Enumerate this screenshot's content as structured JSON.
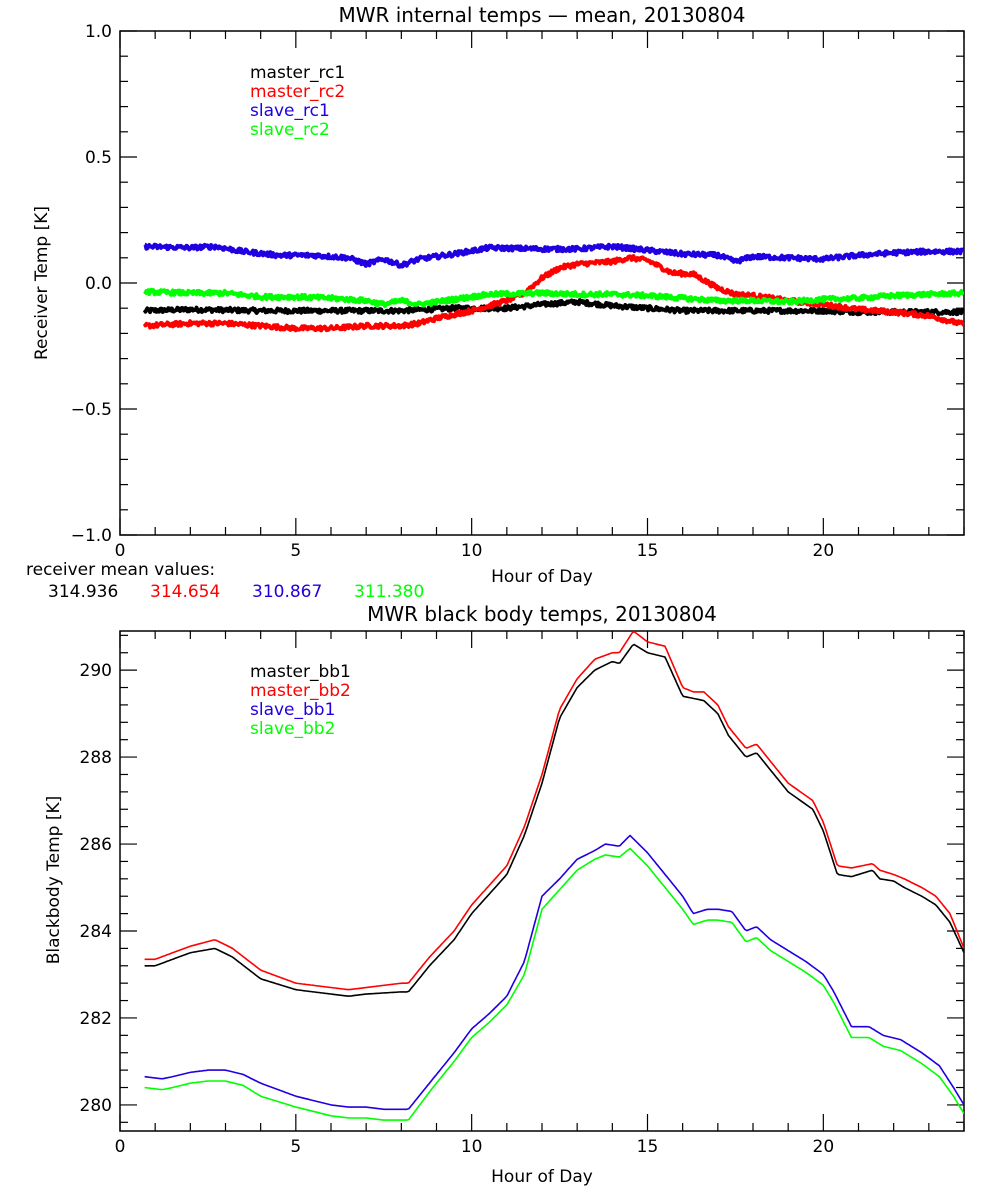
{
  "colors": {
    "black": "#000000",
    "red": "#ff0000",
    "blue": "#2000e0",
    "green": "#00ff00"
  },
  "chart_data": [
    {
      "type": "line",
      "title": "MWR internal temps — mean, 20130804",
      "xlabel": "Hour of Day",
      "ylabel": "Receiver Temp [K]",
      "xlim": [
        0,
        24
      ],
      "ylim": [
        -1.0,
        1.0
      ],
      "xticks": [
        0,
        5,
        10,
        15,
        20
      ],
      "xtick_labels": [
        "0",
        "5",
        "10",
        "15",
        "20"
      ],
      "yticks": [
        -1.0,
        -0.5,
        0.0,
        0.5,
        1.0
      ],
      "ytick_labels": [
        "−1.0",
        "−0.5",
        "0.0",
        "0.5",
        "1.0"
      ],
      "grid": false,
      "legend_position": "top-left",
      "noisy": true,
      "series": [
        {
          "name": "master_rc1",
          "color": "#000000",
          "x": [
            0.7,
            2,
            4,
            6,
            8,
            9.5,
            11,
            12,
            13,
            14,
            15,
            16,
            17,
            18,
            19,
            20,
            21,
            22,
            23,
            24
          ],
          "y": [
            -0.11,
            -0.105,
            -0.11,
            -0.11,
            -0.11,
            -0.1,
            -0.1,
            -0.085,
            -0.075,
            -0.09,
            -0.1,
            -0.11,
            -0.11,
            -0.11,
            -0.11,
            -0.11,
            -0.115,
            -0.115,
            -0.115,
            -0.115
          ]
        },
        {
          "name": "master_rc2",
          "color": "#ff0000",
          "x": [
            0.7,
            2,
            3,
            4,
            5,
            6,
            7,
            8,
            8.5,
            9,
            10,
            11,
            11.5,
            12,
            12.5,
            13,
            14,
            14.5,
            15,
            15.7,
            16.3,
            17,
            17.5,
            18,
            19,
            20,
            21,
            22,
            23,
            24
          ],
          "y": [
            -0.17,
            -0.16,
            -0.16,
            -0.17,
            -0.18,
            -0.18,
            -0.17,
            -0.17,
            -0.16,
            -0.14,
            -0.11,
            -0.07,
            -0.04,
            0.02,
            0.06,
            0.075,
            0.085,
            0.1,
            0.09,
            0.04,
            0.035,
            -0.02,
            -0.045,
            -0.05,
            -0.07,
            -0.085,
            -0.105,
            -0.115,
            -0.13,
            -0.165
          ]
        },
        {
          "name": "slave_rc1",
          "color": "#2000e0",
          "x": [
            0.7,
            2,
            2.7,
            3.5,
            4.5,
            5.5,
            6.5,
            7,
            7.5,
            8,
            8.5,
            9.5,
            10.5,
            12,
            13,
            14,
            15,
            16,
            17,
            17.5,
            18,
            19,
            20,
            21,
            22,
            23,
            24
          ],
          "y": [
            0.145,
            0.14,
            0.145,
            0.125,
            0.11,
            0.11,
            0.1,
            0.075,
            0.095,
            0.07,
            0.095,
            0.115,
            0.14,
            0.135,
            0.135,
            0.145,
            0.13,
            0.115,
            0.11,
            0.085,
            0.105,
            0.1,
            0.095,
            0.11,
            0.12,
            0.125,
            0.125
          ]
        },
        {
          "name": "slave_rc2",
          "color": "#00ff00",
          "x": [
            0.7,
            2,
            3,
            4,
            5,
            6,
            7,
            7.5,
            8,
            8.5,
            9.5,
            10.5,
            12,
            13,
            14,
            15,
            16,
            17,
            18,
            19,
            20,
            21,
            22,
            23,
            24
          ],
          "y": [
            -0.035,
            -0.04,
            -0.04,
            -0.055,
            -0.055,
            -0.06,
            -0.07,
            -0.085,
            -0.07,
            -0.085,
            -0.065,
            -0.045,
            -0.04,
            -0.045,
            -0.045,
            -0.05,
            -0.06,
            -0.07,
            -0.07,
            -0.075,
            -0.065,
            -0.06,
            -0.05,
            -0.045,
            -0.04
          ]
        }
      ],
      "annotation": {
        "label": "receiver mean values:",
        "values": [
          {
            "text": "314.936",
            "color": "#000000"
          },
          {
            "text": "314.654",
            "color": "#ff0000"
          },
          {
            "text": "310.867",
            "color": "#2000e0"
          },
          {
            "text": "311.380",
            "color": "#00ff00"
          }
        ]
      }
    },
    {
      "type": "line",
      "title": "MWR black body temps, 20130804",
      "xlabel": "Hour of Day",
      "ylabel": "Blackbody Temp [K]",
      "xlim": [
        0,
        24
      ],
      "ylim": [
        279.4,
        290.9
      ],
      "xticks": [
        0,
        5,
        10,
        15,
        20
      ],
      "xtick_labels": [
        "0",
        "5",
        "10",
        "15",
        "20"
      ],
      "yticks": [
        280,
        282,
        284,
        286,
        288,
        290
      ],
      "ytick_labels": [
        "280",
        "282",
        "284",
        "286",
        "288",
        "290"
      ],
      "grid": false,
      "legend_position": "top-left",
      "noisy": false,
      "series": [
        {
          "name": "master_bb1",
          "color": "#000000",
          "x": [
            0.7,
            1,
            1.5,
            2,
            2.7,
            3.2,
            4,
            5,
            6,
            6.5,
            7,
            8,
            8.2,
            8.8,
            9.5,
            10,
            11,
            11.5,
            12,
            12.5,
            13,
            13.5,
            14,
            14.2,
            14.6,
            15,
            15.5,
            16,
            16.3,
            16.6,
            17,
            17.3,
            17.8,
            18.1,
            18.5,
            19,
            19.7,
            20,
            20.4,
            20.8,
            21.4,
            21.6,
            22,
            22.3,
            22.8,
            23.2,
            23.6,
            24
          ],
          "y": [
            283.2,
            283.2,
            283.35,
            283.5,
            283.6,
            283.4,
            282.9,
            282.65,
            282.55,
            282.5,
            282.55,
            282.6,
            282.6,
            283.2,
            283.8,
            284.4,
            285.3,
            286.2,
            287.4,
            288.9,
            289.6,
            290.0,
            290.2,
            290.15,
            290.6,
            290.4,
            290.3,
            289.4,
            289.35,
            289.3,
            289.0,
            288.5,
            288.0,
            288.1,
            287.7,
            287.2,
            286.8,
            286.3,
            285.3,
            285.25,
            285.4,
            285.2,
            285.15,
            285.0,
            284.8,
            284.6,
            284.2,
            283.5
          ]
        },
        {
          "name": "master_bb2",
          "color": "#ff0000",
          "x": [
            0.7,
            1,
            1.5,
            2,
            2.7,
            3.2,
            4,
            5,
            6,
            6.5,
            7,
            8,
            8.2,
            8.8,
            9.5,
            10,
            11,
            11.5,
            12,
            12.5,
            13,
            13.5,
            14,
            14.2,
            14.6,
            15,
            15.5,
            16,
            16.3,
            16.6,
            17,
            17.3,
            17.8,
            18.1,
            18.5,
            19,
            19.7,
            20,
            20.4,
            20.8,
            21.4,
            21.6,
            22,
            22.3,
            22.8,
            23.2,
            23.6,
            24
          ],
          "y": [
            283.35,
            283.35,
            283.5,
            283.65,
            283.8,
            283.6,
            283.1,
            282.8,
            282.7,
            282.65,
            282.7,
            282.8,
            282.8,
            283.4,
            284.0,
            284.6,
            285.5,
            286.4,
            287.6,
            289.1,
            289.8,
            290.25,
            290.4,
            290.4,
            290.9,
            290.65,
            290.55,
            289.6,
            289.5,
            289.5,
            289.2,
            288.7,
            288.2,
            288.3,
            287.9,
            287.4,
            287.0,
            286.5,
            285.5,
            285.45,
            285.55,
            285.4,
            285.3,
            285.2,
            285.0,
            284.8,
            284.4,
            283.6
          ]
        },
        {
          "name": "slave_bb1",
          "color": "#2000e0",
          "x": [
            0.7,
            1.2,
            1.5,
            2,
            2.5,
            3,
            3.5,
            4,
            5,
            5.5,
            6,
            6.5,
            7,
            7.5,
            8,
            8.2,
            8.8,
            9.5,
            10,
            10.5,
            11,
            11.5,
            12,
            12.5,
            13,
            13.5,
            13.8,
            14.2,
            14.5,
            15,
            15.5,
            16,
            16.3,
            16.7,
            17,
            17.4,
            17.8,
            18.1,
            18.5,
            19,
            19.5,
            20,
            20.3,
            20.8,
            21.3,
            21.7,
            22.2,
            22.8,
            23.3,
            23.7,
            24
          ],
          "y": [
            280.65,
            280.6,
            280.65,
            280.75,
            280.8,
            280.8,
            280.7,
            280.5,
            280.2,
            280.1,
            280.0,
            279.95,
            279.95,
            279.9,
            279.9,
            279.9,
            280.5,
            281.2,
            281.75,
            282.1,
            282.5,
            283.3,
            284.8,
            285.2,
            285.65,
            285.85,
            286.0,
            285.95,
            286.2,
            285.8,
            285.3,
            284.8,
            284.4,
            284.5,
            284.5,
            284.45,
            284.0,
            284.1,
            283.8,
            283.55,
            283.3,
            283.0,
            282.6,
            281.8,
            281.8,
            281.6,
            281.5,
            281.2,
            280.9,
            280.4,
            280.0
          ]
        },
        {
          "name": "slave_bb2",
          "color": "#00ff00",
          "x": [
            0.7,
            1.2,
            1.5,
            2,
            2.5,
            3,
            3.5,
            4,
            5,
            5.5,
            6,
            6.5,
            7,
            7.5,
            8,
            8.2,
            8.8,
            9.5,
            10,
            10.5,
            11,
            11.5,
            12,
            12.5,
            13,
            13.5,
            13.8,
            14.2,
            14.5,
            15,
            15.5,
            16,
            16.3,
            16.7,
            17,
            17.4,
            17.8,
            18.1,
            18.5,
            19,
            19.5,
            20,
            20.3,
            20.8,
            21.3,
            21.7,
            22.2,
            22.8,
            23.3,
            23.7,
            24
          ],
          "y": [
            280.4,
            280.35,
            280.4,
            280.5,
            280.55,
            280.55,
            280.45,
            280.2,
            279.95,
            279.85,
            279.75,
            279.7,
            279.7,
            279.65,
            279.65,
            279.65,
            280.3,
            281.0,
            281.55,
            281.9,
            282.3,
            283.0,
            284.5,
            284.95,
            285.4,
            285.65,
            285.75,
            285.7,
            285.9,
            285.5,
            285.0,
            284.5,
            284.15,
            284.25,
            284.25,
            284.2,
            283.75,
            283.85,
            283.55,
            283.3,
            283.05,
            282.75,
            282.35,
            281.55,
            281.55,
            281.35,
            281.25,
            280.95,
            280.65,
            280.2,
            279.8
          ]
        }
      ]
    }
  ]
}
